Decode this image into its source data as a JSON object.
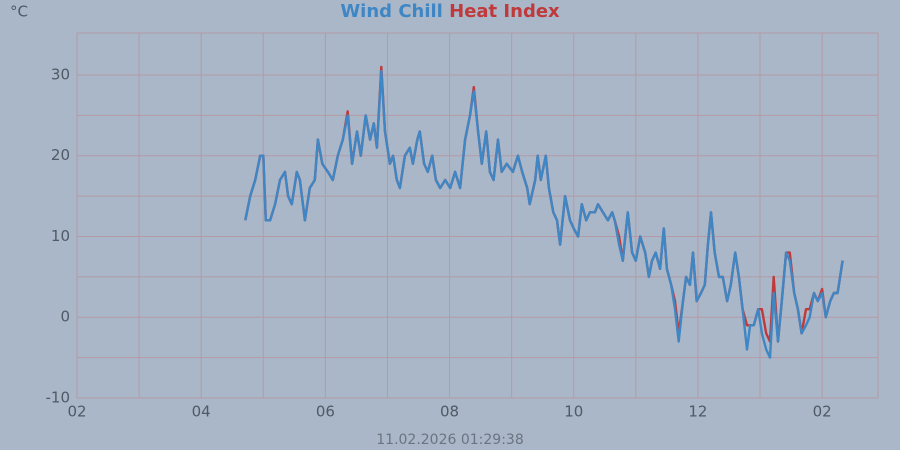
{
  "chart_data": {
    "type": "line",
    "unit": "°C",
    "footer": "11.02.2026 01:29:38",
    "xlim": [
      0,
      12.9
    ],
    "xticks": [
      {
        "value": 0,
        "label": "02"
      },
      {
        "value": 2,
        "label": "04"
      },
      {
        "value": 4,
        "label": "06"
      },
      {
        "value": 6,
        "label": "08"
      },
      {
        "value": 8,
        "label": "10"
      },
      {
        "value": 10,
        "label": "12"
      },
      {
        "value": 12,
        "label": "02"
      }
    ],
    "xminor": [
      1,
      3,
      5,
      7,
      9,
      11
    ],
    "ylim": [
      -10,
      35.2
    ],
    "yticks": [
      -10,
      0,
      10,
      20,
      30
    ],
    "yminor": [
      -5,
      5,
      15,
      25
    ],
    "grid": true,
    "x": [
      2.71,
      2.79,
      2.87,
      2.95,
      3.0,
      3.04,
      3.11,
      3.19,
      3.27,
      3.35,
      3.4,
      3.46,
      3.54,
      3.59,
      3.67,
      3.75,
      3.83,
      3.88,
      3.95,
      4.04,
      4.12,
      4.2,
      4.28,
      4.36,
      4.43,
      4.51,
      4.57,
      4.65,
      4.72,
      4.78,
      4.83,
      4.9,
      4.96,
      5.04,
      5.09,
      5.15,
      5.2,
      5.28,
      5.36,
      5.41,
      5.48,
      5.52,
      5.59,
      5.65,
      5.72,
      5.78,
      5.85,
      5.93,
      6.01,
      6.09,
      6.17,
      6.25,
      6.33,
      6.39,
      6.46,
      6.52,
      6.59,
      6.65,
      6.71,
      6.78,
      6.84,
      6.92,
      7.02,
      7.1,
      7.17,
      7.25,
      7.29,
      7.38,
      7.42,
      7.47,
      7.55,
      7.6,
      7.67,
      7.73,
      7.78,
      7.86,
      7.94,
      8.0,
      8.07,
      8.13,
      8.2,
      8.26,
      8.34,
      8.39,
      8.47,
      8.55,
      8.62,
      8.66,
      8.73,
      8.79,
      8.87,
      8.94,
      9.0,
      9.07,
      9.15,
      9.21,
      9.26,
      9.32,
      9.39,
      9.45,
      9.5,
      9.57,
      9.63,
      9.69,
      9.76,
      9.81,
      9.87,
      9.92,
      9.98,
      10.05,
      10.11,
      10.16,
      10.21,
      10.27,
      10.34,
      10.4,
      10.47,
      10.53,
      10.6,
      10.66,
      10.72,
      10.79,
      10.84,
      10.9,
      10.97,
      11.03,
      11.1,
      11.16,
      11.22,
      11.29,
      11.35,
      11.42,
      11.48,
      11.55,
      11.61,
      11.67,
      11.74,
      11.8,
      11.87,
      11.93,
      12.0,
      12.06,
      12.13,
      12.19,
      12.25,
      12.33
    ],
    "series": [
      {
        "name": "Wind Chill",
        "color": "#3f86c4",
        "values": [
          12,
          15,
          17,
          20,
          20,
          12,
          12,
          14,
          17,
          18,
          15,
          14,
          18,
          17,
          12,
          16,
          17,
          22,
          19,
          18,
          17,
          20,
          22,
          25,
          19,
          23,
          20,
          25,
          22,
          24,
          21,
          30.5,
          23,
          19,
          20,
          17,
          16,
          20,
          21,
          19,
          22,
          23,
          19,
          18,
          20,
          17,
          16,
          17,
          16,
          18,
          16,
          22,
          25,
          28,
          23,
          19,
          23,
          18,
          17,
          22,
          18,
          19,
          18,
          20,
          18,
          16,
          14,
          17,
          20,
          17,
          20,
          16,
          13,
          12,
          9,
          15,
          12,
          11,
          10,
          14,
          12,
          13,
          13,
          14,
          13,
          12,
          13,
          12,
          9,
          7,
          13,
          8,
          7,
          10,
          8,
          5,
          7,
          8,
          6,
          11,
          6,
          4,
          1,
          -3,
          2,
          5,
          4,
          8,
          2,
          3,
          4,
          9,
          13,
          8,
          5,
          5,
          2,
          4,
          8,
          5,
          1,
          -4,
          -1,
          -1,
          1,
          -2,
          -4,
          -5,
          3,
          -3,
          2,
          8,
          7,
          3,
          1,
          -2,
          -1,
          0,
          3,
          2,
          3,
          0,
          2,
          3,
          3,
          7
        ]
      },
      {
        "name": "Heat Index",
        "color": "#c0393b",
        "values": [
          12,
          15,
          17,
          20,
          20,
          12,
          12,
          14,
          17,
          18,
          15,
          14,
          18,
          17,
          12,
          16,
          17,
          22,
          19,
          18,
          17,
          20,
          22,
          25.5,
          19,
          23,
          20,
          25,
          22,
          24,
          21,
          31,
          23,
          19,
          20,
          17,
          16,
          20,
          21,
          19,
          22,
          23,
          19,
          18,
          20,
          17,
          16,
          17,
          16,
          18,
          16,
          22,
          25,
          28.5,
          23,
          19,
          23,
          18,
          17,
          22,
          18,
          19,
          18,
          20,
          18,
          16,
          14,
          17,
          20,
          17,
          20,
          16,
          13,
          12,
          9,
          15,
          12,
          11,
          10,
          14,
          12,
          13,
          13,
          14,
          13,
          12,
          13,
          12,
          10,
          7,
          13,
          8,
          7,
          10,
          8,
          5,
          7,
          8,
          6,
          11,
          6,
          4,
          2,
          -2,
          2,
          5,
          4,
          8,
          2,
          3,
          4,
          9,
          13,
          8,
          5,
          5,
          2,
          4,
          8,
          5,
          1,
          -1,
          -1,
          -1,
          1,
          1,
          -2,
          -3,
          5,
          -3,
          2,
          8,
          8,
          3,
          1,
          -2,
          1,
          1,
          3,
          2,
          3.5,
          0,
          2,
          3,
          3,
          7
        ]
      }
    ]
  }
}
